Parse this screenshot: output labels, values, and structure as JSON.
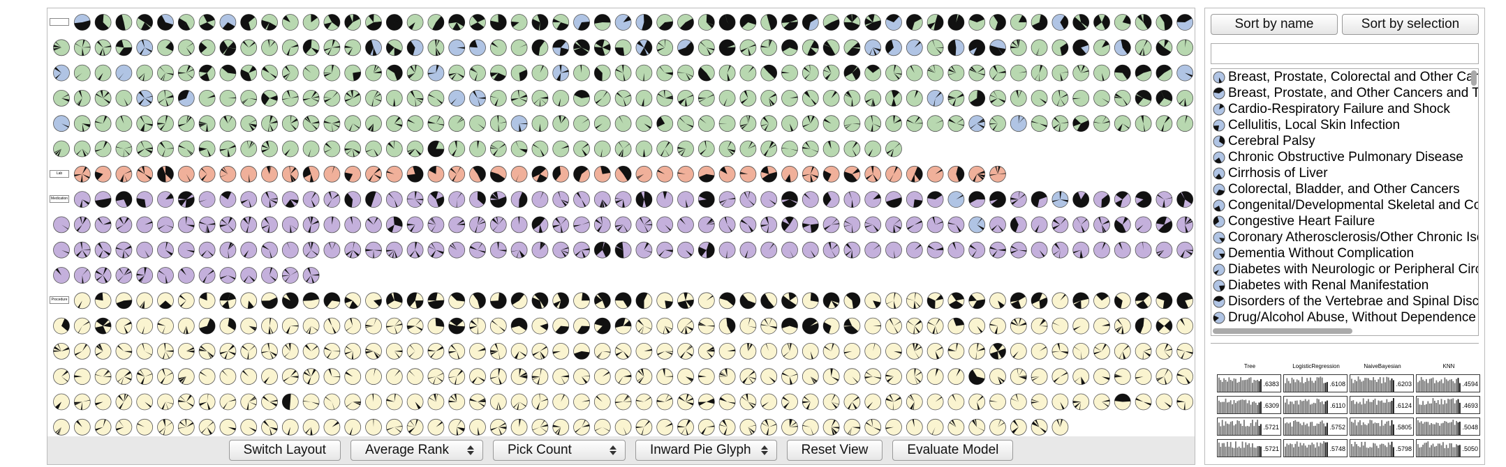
{
  "main_panel": {
    "group_labels": [
      "Lab",
      "Medication",
      "Procedure"
    ],
    "controls": {
      "switch_layout": "Switch Layout",
      "rank_select": "Average Rank",
      "count_select": "Pick Count",
      "glyph_select": "Inward Pie Glyph",
      "reset_view": "Reset View",
      "evaluate_model": "Evaluate Model"
    }
  },
  "side_panel": {
    "sort_by_name": "Sort by name",
    "sort_by_selection": "Sort by selection",
    "conditions": [
      "Breast, Prostate, Colorectal and Other Cancers",
      "Breast, Prostate, and Other Cancers and Tumors",
      "Cardio-Respiratory Failure and Shock",
      "Cellulitis, Local Skin Infection",
      "Cerebral Palsy",
      "Chronic Obstructive Pulmonary Disease",
      "Cirrhosis of Liver",
      "Colorectal, Bladder, and Other Cancers",
      "Congenital/Developmental Skeletal and Connective Tissue Disorders",
      "Congestive Heart Failure",
      "Coronary Atherosclerosis/Other Chronic Ischemic Heart Disease",
      "Dementia Without Complication",
      "Diabetes with Neurologic or Peripheral Circulatory Manifestation",
      "Diabetes with Renal Manifestation",
      "Disorders of the Vertebrae and Spinal Discs",
      "Drug/Alcohol Abuse, Without Dependence"
    ],
    "model_table": {
      "headers": [
        "Tree",
        "LogisticRegression",
        "NaiveBayesian",
        "KNN"
      ],
      "rows": [
        [
          ".6383",
          ".6108",
          ".6203",
          ".4594"
        ],
        [
          ".6309",
          ".6110",
          ".6124",
          ".4693"
        ],
        [
          ".5721",
          ".5752",
          ".5805",
          ".5048"
        ],
        [
          ".5721",
          ".5748",
          ".5798",
          ".5050"
        ]
      ]
    }
  }
}
